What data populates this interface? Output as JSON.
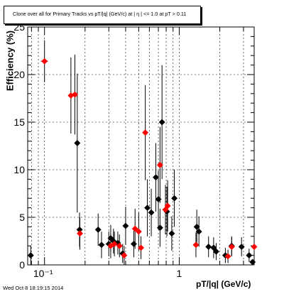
{
  "canvas": {
    "title": "Clone over all for Primary Tracks vs pT/|q| (GeV/c) at | η | <= 1.0 at pT > 0.11",
    "footer_timestamp": "Wed Oct  8 18:19:15 2014"
  },
  "chart_data": {
    "type": "scatter",
    "title": "Clone over all for Primary Tracks vs pT/|q| (GeV/c) at | η | <= 1.0 at pT > 0.11",
    "xlabel": "pT/|q| (GeV/c)",
    "ylabel": "Efficiency (%)",
    "x_scale": "log",
    "xlim": [
      0.075,
      3.6
    ],
    "ylim": [
      0,
      25
    ],
    "grid": true,
    "x_major_ticks": [
      0.1,
      1
    ],
    "x_tick_labels": [
      "10⁻¹",
      "1"
    ],
    "y_ticks": [
      0,
      5,
      10,
      15,
      20,
      25
    ],
    "y_tick_labels": [
      "0",
      "5",
      "10",
      "15",
      "20",
      "25"
    ],
    "series": [
      {
        "color": "#000000",
        "marker": "diamond",
        "points": [
          {
            "x": 0.079,
            "y": 1.0,
            "err": 1.0
          },
          {
            "x": 0.175,
            "y": 12.8,
            "err": 7.3
          },
          {
            "x": 0.182,
            "y": 3.7,
            "err": 1.8
          },
          {
            "x": 0.25,
            "y": 3.7,
            "err": 1.7
          },
          {
            "x": 0.265,
            "y": 2.1,
            "err": 1.4
          },
          {
            "x": 0.3,
            "y": 2.2,
            "err": 1.3
          },
          {
            "x": 0.31,
            "y": 2.8,
            "err": 1.4
          },
          {
            "x": 0.325,
            "y": 2.5,
            "err": 1.3
          },
          {
            "x": 0.35,
            "y": 2.3,
            "err": 1.2
          },
          {
            "x": 0.38,
            "y": 1.2,
            "err": 1.0
          },
          {
            "x": 0.4,
            "y": 4.1,
            "err": 2.0
          },
          {
            "x": 0.46,
            "y": 2.2,
            "err": 1.4
          },
          {
            "x": 0.58,
            "y": 6.0,
            "err": 3.0
          },
          {
            "x": 0.62,
            "y": 5.5,
            "err": 2.5
          },
          {
            "x": 0.67,
            "y": 9.2,
            "err": 3.6
          },
          {
            "x": 0.7,
            "y": 6.9,
            "err": 3.0
          },
          {
            "x": 0.72,
            "y": 3.9,
            "err": 2.0
          },
          {
            "x": 0.745,
            "y": 15.0,
            "err": 6.0
          },
          {
            "x": 0.81,
            "y": 5.6,
            "err": 2.6
          },
          {
            "x": 0.88,
            "y": 3.3,
            "err": 1.8
          },
          {
            "x": 0.92,
            "y": 7.0,
            "err": 3.0
          },
          {
            "x": 1.35,
            "y": 4.0,
            "err": 1.8
          },
          {
            "x": 1.4,
            "y": 3.5,
            "err": 1.6
          },
          {
            "x": 1.65,
            "y": 1.9,
            "err": 1.1
          },
          {
            "x": 1.8,
            "y": 1.8,
            "err": 1.1
          },
          {
            "x": 1.88,
            "y": 1.4,
            "err": 0.9
          },
          {
            "x": 2.2,
            "y": 1.0,
            "err": 0.8
          },
          {
            "x": 2.45,
            "y": 2.0,
            "err": 1.0
          },
          {
            "x": 2.9,
            "y": 1.9,
            "err": 1.0
          },
          {
            "x": 3.3,
            "y": 1.0,
            "err": 0.7
          },
          {
            "x": 3.5,
            "y": 0.3,
            "err": 0.3
          }
        ]
      },
      {
        "color": "#ff0000",
        "marker": "diamond",
        "points": [
          {
            "x": 0.1,
            "y": 21.4,
            "err": 2.2,
            "xerr": 0.006
          },
          {
            "x": 0.157,
            "y": 17.8,
            "err": 4.0
          },
          {
            "x": 0.168,
            "y": 17.9,
            "err": 4.2
          },
          {
            "x": 0.183,
            "y": 3.3,
            "err": 1.7
          },
          {
            "x": 0.31,
            "y": 2.0,
            "err": 1.3
          },
          {
            "x": 0.33,
            "y": 2.2,
            "err": 1.3
          },
          {
            "x": 0.36,
            "y": 2.0,
            "err": 1.2
          },
          {
            "x": 0.39,
            "y": 1.0,
            "err": 1.0
          },
          {
            "x": 0.47,
            "y": 3.8,
            "err": 2.1
          },
          {
            "x": 0.5,
            "y": 3.5,
            "err": 2.0
          },
          {
            "x": 0.52,
            "y": 1.8,
            "err": 1.2
          },
          {
            "x": 0.56,
            "y": 13.9,
            "err": 5.0
          },
          {
            "x": 0.72,
            "y": 10.5,
            "err": 4.0
          },
          {
            "x": 0.79,
            "y": 5.8,
            "err": 2.6
          },
          {
            "x": 0.82,
            "y": 6.2,
            "err": 2.7
          },
          {
            "x": 1.33,
            "y": 2.1,
            "err": 1.3
          },
          {
            "x": 2.3,
            "y": 0.9,
            "err": 0.7
          },
          {
            "x": 2.45,
            "y": 1.9,
            "err": 1.0
          },
          {
            "x": 3.6,
            "y": 1.9,
            "err": 0.9
          }
        ]
      }
    ]
  }
}
